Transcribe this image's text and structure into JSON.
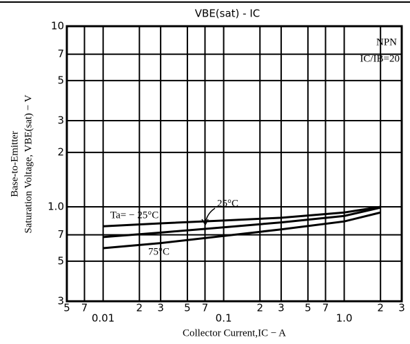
{
  "chart_data": {
    "type": "line",
    "title": "VBE(sat) - IC",
    "xlabel": "Collector Current,IC − A",
    "ylabel": [
      "Base-to-Emitter",
      "Saturation Voltage, VBE(sat) − V"
    ],
    "annotations": [
      "NPN",
      "IC/IB=20"
    ],
    "log_x": true,
    "log_y": true,
    "grid": true,
    "x": [
      0.01,
      0.03,
      0.1,
      0.3,
      1,
      2
    ],
    "series": [
      {
        "name": "Ta= − 25°C",
        "color": "#000000",
        "values": [
          0.78,
          0.81,
          0.84,
          0.87,
          0.93,
          1.0
        ]
      },
      {
        "name": "25°C",
        "color": "#000000",
        "values": [
          0.68,
          0.72,
          0.77,
          0.82,
          0.89,
          0.99
        ]
      },
      {
        "name": "75°C",
        "color": "#000000",
        "values": [
          0.59,
          0.63,
          0.69,
          0.75,
          0.83,
          0.93
        ]
      }
    ],
    "xlim": [
      0.005,
      3
    ],
    "xticks": [
      {
        "value": 0.005,
        "label": "5"
      },
      {
        "value": 0.007,
        "label": "7"
      },
      0.01,
      {
        "value": 0.02,
        "label": "2"
      },
      {
        "value": 0.03,
        "label": "3"
      },
      {
        "value": 0.05,
        "label": "5"
      },
      {
        "value": 0.07,
        "label": "7"
      },
      0.1,
      {
        "value": 0.2,
        "label": "2"
      },
      {
        "value": 0.3,
        "label": "3"
      },
      {
        "value": 0.5,
        "label": "5"
      },
      {
        "value": 0.7,
        "label": "7"
      },
      {
        "value": 1,
        "label": "1.0"
      },
      2,
      3
    ],
    "ylim": [
      0.3,
      10
    ],
    "yticks": [
      10,
      7,
      5,
      3,
      2,
      {
        "value": 1,
        "label": "1.0"
      },
      {
        "value": 0.7,
        "label": "7"
      },
      {
        "value": 0.5,
        "label": "5"
      },
      {
        "value": 0.3,
        "label": "3"
      }
    ]
  }
}
